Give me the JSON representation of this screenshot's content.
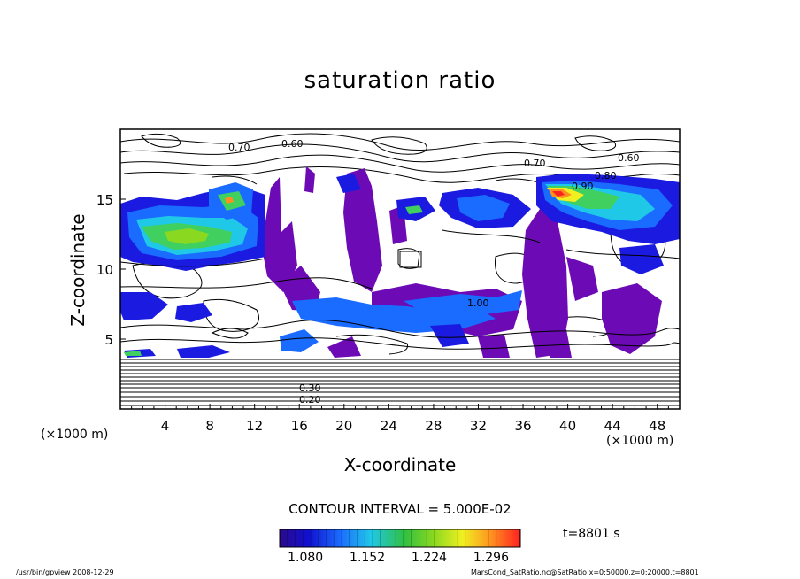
{
  "chart_data": {
    "type": "heatmap",
    "title": "saturation ratio",
    "xlabel": "X-coordinate",
    "ylabel": "Z-coordinate",
    "x_unit": "(×1000 m)",
    "xlim": [
      0,
      50
    ],
    "ylim": [
      0,
      20
    ],
    "x_ticks": [
      4,
      8,
      12,
      16,
      20,
      24,
      28,
      32,
      36,
      40,
      44,
      48
    ],
    "y_ticks": [
      5,
      10,
      15
    ],
    "contour_interval": "CONTOUR INTERVAL = 5.000E-02",
    "colorbar": {
      "range": [
        1.05,
        1.33
      ],
      "ticks": [
        "1.080",
        "1.152",
        "1.224",
        "1.296"
      ]
    },
    "contour_labels": [
      "0.70",
      "0.60",
      "0.80",
      "0.90",
      "1.00",
      "0.30",
      "0.20"
    ],
    "time": "t=8801 s",
    "grid": false,
    "legend": "bottom"
  },
  "footer": {
    "left": "/usr/bin/gpview   2008-12-29",
    "right": "MarsCond_SatRatio.nc@SatRatio,x=0:50000,z=0:20000,t=8801"
  }
}
